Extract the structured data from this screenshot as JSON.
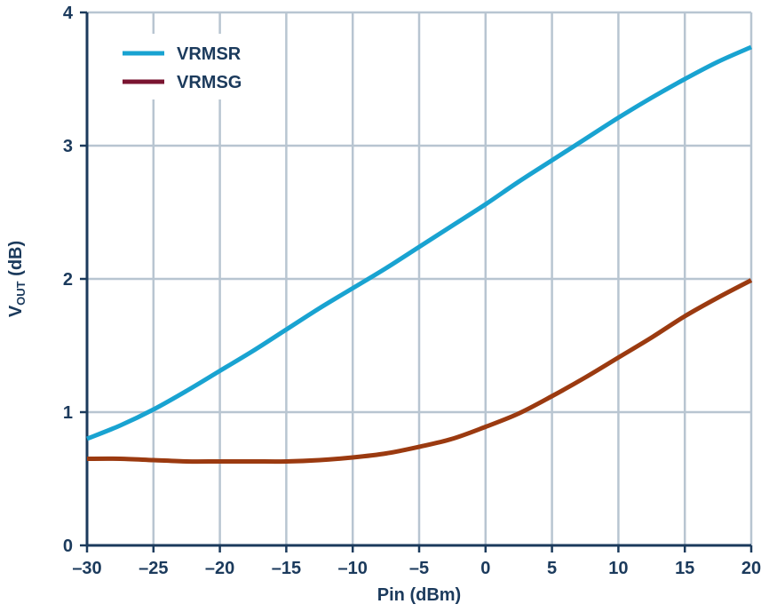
{
  "chart_data": {
    "type": "line",
    "title": "",
    "xlabel": "Pin (dBm)",
    "ylabel": {
      "main": "V",
      "subscript": "OUT",
      "suffix": " (dB)"
    },
    "xlim": [
      -30,
      20
    ],
    "ylim": [
      0,
      4
    ],
    "xticks": [
      -30,
      -25,
      -20,
      -15,
      -10,
      -5,
      0,
      5,
      10,
      15,
      20
    ],
    "xtick_labels": [
      "–30",
      "–25",
      "–20",
      "–15",
      "–10",
      "–5",
      "0",
      "5",
      "10",
      "15",
      "20"
    ],
    "yticks": [
      0,
      1,
      2,
      3,
      4
    ],
    "ytick_labels": [
      "0",
      "1",
      "2",
      "3",
      "4"
    ],
    "grid": true,
    "legend_position": "top-left",
    "series": [
      {
        "name": "VRMSR",
        "color": "#19a3d1",
        "x": [
          -30,
          -27.5,
          -25,
          -22.5,
          -20,
          -17.5,
          -15,
          -12.5,
          -10,
          -7.5,
          -5,
          -2.5,
          0,
          2.5,
          5,
          7.5,
          10,
          12.5,
          15,
          17.5,
          20
        ],
        "y": [
          0.8,
          0.9,
          1.02,
          1.16,
          1.31,
          1.46,
          1.62,
          1.78,
          1.93,
          2.08,
          2.24,
          2.4,
          2.56,
          2.73,
          2.89,
          3.05,
          3.21,
          3.36,
          3.5,
          3.63,
          3.74
        ]
      },
      {
        "name": "VRMSG",
        "color": "#9b3a10",
        "legend_color": "#7a1430",
        "x": [
          -30,
          -27.5,
          -25,
          -22.5,
          -20,
          -17.5,
          -15,
          -12.5,
          -10,
          -7.5,
          -5,
          -2.5,
          0,
          2.5,
          5,
          7.5,
          10,
          12.5,
          15,
          17.5,
          20
        ],
        "y": [
          0.65,
          0.65,
          0.64,
          0.63,
          0.63,
          0.63,
          0.63,
          0.64,
          0.66,
          0.69,
          0.74,
          0.8,
          0.89,
          0.99,
          1.12,
          1.26,
          1.41,
          1.56,
          1.72,
          1.86,
          1.99
        ]
      }
    ]
  },
  "colors": {
    "grid": "#b8c5d1",
    "axis": "#1b3a5c",
    "text": "#1b3a5c"
  }
}
